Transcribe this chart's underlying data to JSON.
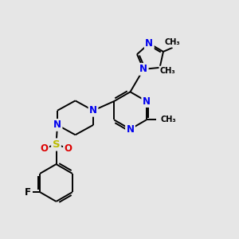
{
  "bg_color": "#e6e6e6",
  "bond_color": "#000000",
  "N_color": "#0000ee",
  "O_color": "#dd0000",
  "S_color": "#bbbb00",
  "F_color": "#000000",
  "lw": 1.4,
  "fs": 8.5,
  "xlim": [
    0,
    10
  ],
  "ylim": [
    0,
    10
  ]
}
